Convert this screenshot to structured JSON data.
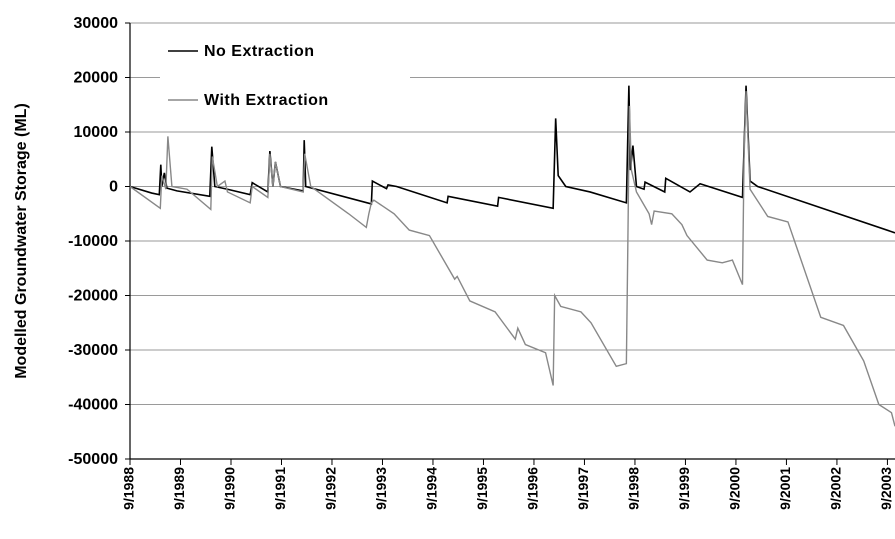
{
  "chart_data": {
    "type": "line",
    "y_label": "Modelled Groundwater Storage (ML)",
    "xlim": [
      1988.67,
      2003.82
    ],
    "ylim": [
      -50000,
      30000
    ],
    "yticks": [
      -50000,
      -40000,
      -30000,
      -20000,
      -10000,
      0,
      10000,
      20000,
      30000
    ],
    "xticks": [
      {
        "value": 1988.67,
        "label": "9/1988"
      },
      {
        "value": 1989.67,
        "label": "9/1989"
      },
      {
        "value": 1990.67,
        "label": "9/1990"
      },
      {
        "value": 1991.67,
        "label": "9/1991"
      },
      {
        "value": 1992.67,
        "label": "9/1992"
      },
      {
        "value": 1993.67,
        "label": "9/1993"
      },
      {
        "value": 1994.67,
        "label": "9/1994"
      },
      {
        "value": 1995.67,
        "label": "9/1995"
      },
      {
        "value": 1996.67,
        "label": "9/1996"
      },
      {
        "value": 1997.67,
        "label": "9/1997"
      },
      {
        "value": 1998.67,
        "label": "9/1998"
      },
      {
        "value": 1999.67,
        "label": "9/1999"
      },
      {
        "value": 2000.67,
        "label": "9/2000"
      },
      {
        "value": 2001.67,
        "label": "9/2001"
      },
      {
        "value": 2002.67,
        "label": "9/2002"
      },
      {
        "value": 2003.67,
        "label": "9/2003"
      }
    ],
    "grid": true,
    "legend": "top-left",
    "series": [
      {
        "name": "No Extraction",
        "color": "#000000",
        "x": [
          1988.67,
          1989.1,
          1989.25,
          1989.28,
          1989.3,
          1989.35,
          1989.4,
          1989.6,
          1990.25,
          1990.29,
          1990.35,
          1990.6,
          1991.05,
          1991.09,
          1991.4,
          1991.44,
          1991.5,
          1991.55,
          1991.65,
          1992.1,
          1992.12,
          1992.15,
          1993.45,
          1993.47,
          1993.75,
          1993.78,
          1993.95,
          1994.95,
          1994.97,
          1995.95,
          1995.97,
          1997.05,
          1997.1,
          1997.15,
          1997.3,
          1997.78,
          1998.5,
          1998.55,
          1998.58,
          1998.63,
          1998.7,
          1998.85,
          1998.87,
          1999.26,
          1999.28,
          1999.76,
          1999.96,
          2000.8,
          2000.87,
          2000.95,
          2001.1,
          2003.82
        ],
        "values": [
          0,
          -1200,
          -1500,
          4000,
          0,
          2500,
          -300,
          -800,
          -1800,
          7300,
          0,
          -500,
          -1500,
          700,
          -1000,
          6500,
          0,
          4500,
          0,
          -800,
          8500,
          0,
          -3200,
          1000,
          -400,
          300,
          0,
          -3000,
          -1800,
          -3600,
          -2000,
          -4000,
          12500,
          2000,
          0,
          -1000,
          -3000,
          18500,
          3000,
          7500,
          0,
          -500,
          800,
          -1000,
          1500,
          -1000,
          500,
          -2000,
          18500,
          1000,
          0,
          -8500
        ]
      },
      {
        "name": "With Extraction",
        "color": "#888888",
        "x": [
          1988.67,
          1989.27,
          1989.3,
          1989.38,
          1989.42,
          1989.5,
          1989.8,
          1990.27,
          1990.3,
          1990.4,
          1990.55,
          1990.6,
          1991.05,
          1991.09,
          1991.4,
          1991.44,
          1991.5,
          1991.55,
          1991.65,
          1992.1,
          1992.13,
          1992.25,
          1993.0,
          1993.35,
          1993.4,
          1993.45,
          1993.5,
          1993.9,
          1994.2,
          1994.6,
          1995.1,
          1995.15,
          1995.4,
          1995.9,
          1996.3,
          1996.35,
          1996.5,
          1996.9,
          1997.05,
          1997.08,
          1997.2,
          1997.6,
          1997.8,
          1998.3,
          1998.5,
          1998.53,
          1998.56,
          1998.6,
          1998.7,
          1998.95,
          1999.0,
          1999.05,
          1999.4,
          1999.6,
          1999.7,
          2000.1,
          2000.4,
          2000.6,
          2000.8,
          2000.83,
          2000.87,
          2000.95,
          2001.3,
          2001.7,
          2002.35,
          2002.8,
          2003.2,
          2003.5,
          2003.75,
          2003.82
        ],
        "values": [
          0,
          -4000,
          2000,
          -500,
          9200,
          0,
          -500,
          -4200,
          5500,
          0,
          1000,
          -1000,
          -3000,
          0,
          -2000,
          6000,
          0,
          4500,
          0,
          -1000,
          6000,
          0,
          -5000,
          -7500,
          -5000,
          -3000,
          -2500,
          -5000,
          -8000,
          -9000,
          -17000,
          -16500,
          -21000,
          -23000,
          -28000,
          -26000,
          -29000,
          -30500,
          -36500,
          -20000,
          -22000,
          -23000,
          -25000,
          -33000,
          -32500,
          -10000,
          14800,
          3000,
          -1000,
          -5000,
          -7000,
          -4500,
          -5000,
          -7000,
          -9000,
          -13500,
          -14000,
          -13500,
          -18000,
          5000,
          17500,
          -500,
          -5500,
          -6500,
          -24000,
          -25500,
          -32000,
          -40000,
          -41500,
          -44000
        ]
      }
    ]
  }
}
